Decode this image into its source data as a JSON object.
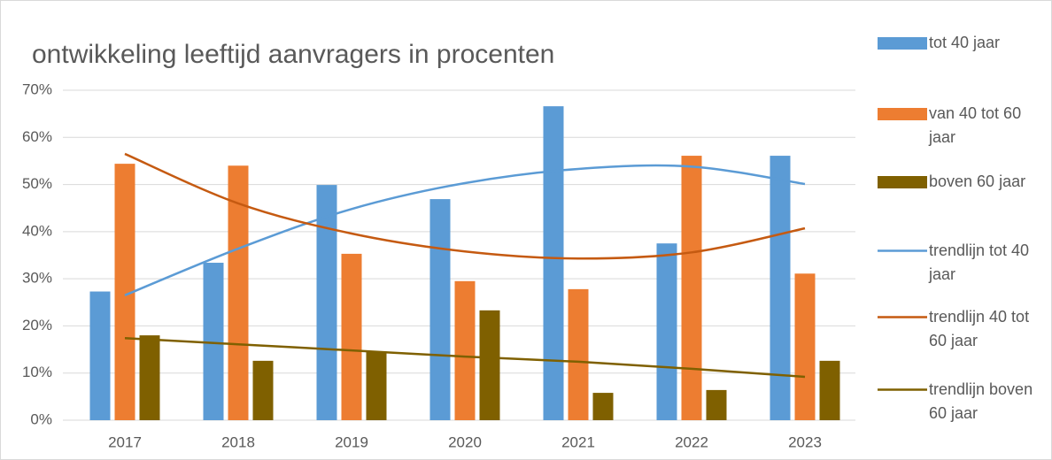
{
  "chart_data": {
    "type": "bar",
    "title": "ontwikkeling leeftijd aanvragers in procenten",
    "categories": [
      "2017",
      "2018",
      "2019",
      "2020",
      "2021",
      "2022",
      "2023"
    ],
    "series": [
      {
        "name": "tot 40 jaar",
        "color": "#5b9bd5",
        "type": "bar",
        "values": [
          27.3,
          33.4,
          49.9,
          46.9,
          66.6,
          37.5,
          56.1
        ]
      },
      {
        "name": "van 40 tot 60 jaar",
        "color": "#ed7d31",
        "type": "bar",
        "values": [
          54.4,
          54.0,
          35.3,
          29.5,
          27.8,
          56.1,
          31.1
        ]
      },
      {
        "name": "boven 60 jaar",
        "color": "#7f6000",
        "type": "bar",
        "values": [
          18.0,
          12.6,
          14.6,
          23.3,
          5.8,
          6.4,
          12.6
        ]
      },
      {
        "name": "trendlijn tot 40 jaar",
        "color": "#5b9bd5",
        "type": "line",
        "values": [
          26.5,
          36.4,
          44.8,
          50.3,
          53.3,
          53.8,
          50.1
        ]
      },
      {
        "name": "trendlijn 40 tot 60 jaar",
        "color": "#c55a11",
        "type": "line",
        "values": [
          56.5,
          46.0,
          39.6,
          35.8,
          34.3,
          35.6,
          40.7
        ]
      },
      {
        "name": "trendlijn boven 60 jaar",
        "color": "#7f6000",
        "type": "line",
        "values": [
          17.4,
          16.1,
          14.8,
          13.5,
          12.4,
          10.9,
          9.2
        ]
      }
    ],
    "ylim": [
      0,
      70
    ],
    "yticks": [
      {
        "value": 0,
        "label": "0%"
      },
      {
        "value": 10,
        "label": "10%"
      },
      {
        "value": 20,
        "label": "20%"
      },
      {
        "value": 30,
        "label": "30%"
      },
      {
        "value": 40,
        "label": "40%"
      },
      {
        "value": 50,
        "label": "50%"
      },
      {
        "value": 60,
        "label": "60%"
      },
      {
        "value": 70,
        "label": "70%"
      }
    ],
    "grid": true,
    "legend": "right"
  }
}
